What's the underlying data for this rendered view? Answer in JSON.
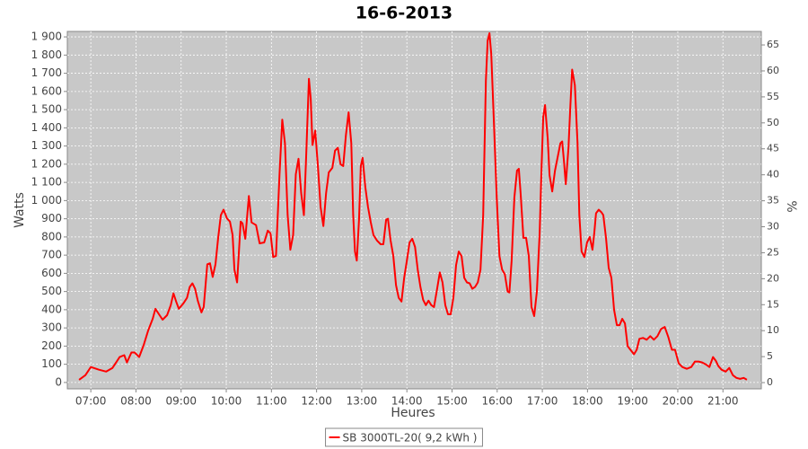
{
  "chart_data": {
    "type": "line",
    "title": "16-6-2013",
    "x_label": "Heures",
    "y_label": "Watts",
    "y2_label": "%",
    "xlim": [
      6.48,
      21.85
    ],
    "xticks": [
      {
        "value": 7,
        "label": "07:00"
      },
      {
        "value": 8,
        "label": "08:00"
      },
      {
        "value": 9,
        "label": "09:00"
      },
      {
        "value": 10,
        "label": "10:00"
      },
      {
        "value": 11,
        "label": "11:00"
      },
      {
        "value": 12,
        "label": "12:00"
      },
      {
        "value": 13,
        "label": "13:00"
      },
      {
        "value": 14,
        "label": "14:00"
      },
      {
        "value": 15,
        "label": "15:00"
      },
      {
        "value": 16,
        "label": "16:00"
      },
      {
        "value": 17,
        "label": "17:00"
      },
      {
        "value": 18,
        "label": "18:00"
      },
      {
        "value": 19,
        "label": "19:00"
      },
      {
        "value": 20,
        "label": "20:00"
      },
      {
        "value": 21,
        "label": "21:00"
      }
    ],
    "ylim": [
      -35,
      1930
    ],
    "yticks": [
      0,
      100,
      200,
      300,
      400,
      500,
      600,
      700,
      800,
      900,
      {
        "value": 1000,
        "label": "1 000"
      },
      {
        "value": 1100,
        "label": "1 100"
      },
      {
        "value": 1200,
        "label": "1 200"
      },
      {
        "value": 1300,
        "label": "1 300"
      },
      {
        "value": 1400,
        "label": "1 400"
      },
      {
        "value": 1500,
        "label": "1 500"
      },
      {
        "value": 1600,
        "label": "1 600"
      },
      {
        "value": 1700,
        "label": "1 700"
      },
      {
        "value": 1800,
        "label": "1 800"
      },
      {
        "value": 1900,
        "label": "1 900"
      }
    ],
    "y2lim": [
      -1.2,
      67.6
    ],
    "y2ticks": [
      0,
      5,
      10,
      15,
      20,
      25,
      30,
      35,
      40,
      45,
      50,
      55,
      60,
      65
    ],
    "grid": true,
    "legend": "bottom",
    "x": [
      6.74,
      6.88,
      7.0,
      7.18,
      7.34,
      7.48,
      7.64,
      7.74,
      7.8,
      7.9,
      7.97,
      8.07,
      8.17,
      8.27,
      8.37,
      8.43,
      8.51,
      8.59,
      8.69,
      8.77,
      8.83,
      8.89,
      8.95,
      9.05,
      9.13,
      9.19,
      9.25,
      9.31,
      9.37,
      9.45,
      9.5,
      9.58,
      9.64,
      9.7,
      9.76,
      9.82,
      9.88,
      9.94,
      10.02,
      10.08,
      10.14,
      10.18,
      10.24,
      10.32,
      10.36,
      10.42,
      10.5,
      10.56,
      10.66,
      10.74,
      10.84,
      10.92,
      10.98,
      11.04,
      11.1,
      11.18,
      11.24,
      11.3,
      11.36,
      11.42,
      11.48,
      11.54,
      11.6,
      11.66,
      11.72,
      11.77,
      11.83,
      11.87,
      11.91,
      11.97,
      12.03,
      12.09,
      12.15,
      12.21,
      12.27,
      12.35,
      12.41,
      12.47,
      12.53,
      12.59,
      12.65,
      12.71,
      12.77,
      12.81,
      12.85,
      12.89,
      12.94,
      12.98,
      13.02,
      13.08,
      13.14,
      13.2,
      13.26,
      13.34,
      13.42,
      13.48,
      13.54,
      13.58,
      13.64,
      13.7,
      13.76,
      13.82,
      13.88,
      13.94,
      14.0,
      14.06,
      14.12,
      14.18,
      14.24,
      14.3,
      14.36,
      14.42,
      14.48,
      14.54,
      14.6,
      14.66,
      14.73,
      14.79,
      14.85,
      14.91,
      14.97,
      15.03,
      15.09,
      15.15,
      15.21,
      15.27,
      15.33,
      15.39,
      15.45,
      15.51,
      15.57,
      15.63,
      15.69,
      15.75,
      15.79,
      15.83,
      15.87,
      15.93,
      15.99,
      16.05,
      16.11,
      16.17,
      16.23,
      16.27,
      16.32,
      16.38,
      16.44,
      16.48,
      16.52,
      16.58,
      16.64,
      16.7,
      16.76,
      16.82,
      16.88,
      16.94,
      16.98,
      17.02,
      17.06,
      17.12,
      17.16,
      17.22,
      17.28,
      17.34,
      17.4,
      17.44,
      17.48,
      17.52,
      17.58,
      17.62,
      17.66,
      17.72,
      17.78,
      17.82,
      17.87,
      17.93,
      17.99,
      18.05,
      18.11,
      18.15,
      18.19,
      18.25,
      18.31,
      18.35,
      18.41,
      18.47,
      18.53,
      18.59,
      18.65,
      18.71,
      18.77,
      18.83,
      18.89,
      18.95,
      19.03,
      19.09,
      19.15,
      19.23,
      19.31,
      19.39,
      19.47,
      19.55,
      19.63,
      19.71,
      19.79,
      19.87,
      19.94,
      20.02,
      20.1,
      20.2,
      20.3,
      20.38,
      20.46,
      20.54,
      20.62,
      20.7,
      20.78,
      20.84,
      20.9,
      20.97,
      21.06,
      21.14,
      21.22,
      21.3,
      21.38,
      21.46,
      21.53
    ],
    "series": [
      {
        "name": "SB 3000TL-20( 9,2 kWh )",
        "color": "#ff0000",
        "values": [
          15,
          40,
          85,
          70,
          60,
          80,
          140,
          150,
          110,
          165,
          165,
          140,
          205,
          285,
          350,
          405,
          375,
          345,
          370,
          425,
          490,
          445,
          405,
          435,
          465,
          525,
          545,
          515,
          450,
          385,
          415,
          650,
          655,
          580,
          650,
          795,
          920,
          950,
          900,
          885,
          810,
          620,
          550,
          885,
          875,
          790,
          1025,
          880,
          865,
          765,
          770,
          835,
          820,
          690,
          695,
          1150,
          1445,
          1315,
          920,
          730,
          810,
          1145,
          1230,
          1040,
          920,
          1240,
          1670,
          1560,
          1305,
          1385,
          1190,
          965,
          860,
          1040,
          1155,
          1180,
          1275,
          1290,
          1200,
          1190,
          1360,
          1485,
          1315,
          920,
          720,
          670,
          895,
          1190,
          1235,
          1075,
          965,
          880,
          810,
          780,
          760,
          760,
          895,
          900,
          780,
          695,
          535,
          465,
          445,
          575,
          670,
          770,
          790,
          745,
          620,
          525,
          455,
          425,
          450,
          425,
          415,
          500,
          605,
          550,
          425,
          375,
          375,
          465,
          645,
          720,
          695,
          575,
          550,
          545,
          515,
          525,
          550,
          620,
          920,
          1660,
          1880,
          1920,
          1805,
          1410,
          1015,
          695,
          620,
          595,
          500,
          495,
          670,
          1015,
          1165,
          1175,
          1040,
          795,
          795,
          695,
          415,
          365,
          500,
          820,
          1165,
          1460,
          1525,
          1340,
          1140,
          1050,
          1165,
          1240,
          1315,
          1325,
          1215,
          1090,
          1290,
          1520,
          1720,
          1635,
          1315,
          920,
          720,
          690,
          770,
          800,
          730,
          820,
          930,
          950,
          935,
          920,
          795,
          630,
          575,
          400,
          315,
          315,
          350,
          325,
          200,
          180,
          155,
          180,
          240,
          245,
          235,
          255,
          235,
          255,
          295,
          305,
          250,
          180,
          180,
          105,
          85,
          75,
          85,
          115,
          115,
          110,
          100,
          85,
          140,
          120,
          90,
          70,
          60,
          80,
          40,
          25,
          20,
          25,
          15
        ]
      }
    ]
  }
}
